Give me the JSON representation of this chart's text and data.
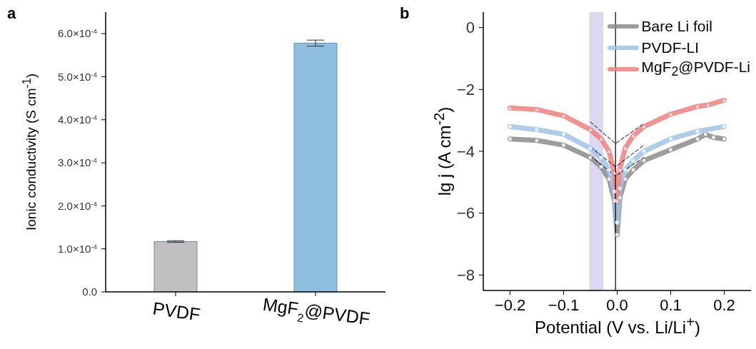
{
  "chart_data": [
    {
      "type": "bar",
      "title": "a",
      "ylabel": "Ionic conductivity (S cm$^{-1}$)",
      "categories": [
        "PVDF",
        "MgF$_{2}$@PVDF"
      ],
      "values": [
        0.000117,
        0.000578
      ],
      "errors": [
        2e-06,
        7e-06
      ],
      "colors": [
        "#c0c0c0",
        "#8fbfe0"
      ],
      "ylim": [
        0,
        0.00065
      ],
      "yticks": [
        {
          "value": 0,
          "label": "0.0"
        },
        {
          "value": 0.0001,
          "label": "1.0×10$^{-4}$"
        },
        {
          "value": 0.0002,
          "label": "2.0×10$^{-4}$"
        },
        {
          "value": 0.0003,
          "label": "3.0×10$^{-4}$"
        },
        {
          "value": 0.0004,
          "label": "4.0×10$^{-4}$"
        },
        {
          "value": 0.0005,
          "label": "5.0×10$^{-4}$"
        },
        {
          "value": 0.0006,
          "label": "6.0×10$^{-4}$"
        }
      ]
    },
    {
      "type": "line",
      "title": "b",
      "xlabel": "Potential (V vs. Li/Li$^{+}$)",
      "ylabel": "lg j (A cm$^{-2}$)",
      "legend": "top right",
      "xlim": [
        -0.25,
        0.25
      ],
      "ylim": [
        -8.5,
        0.5
      ],
      "xticks": [
        {
          "value": -0.2,
          "label": "−0.2"
        },
        {
          "value": -0.1,
          "label": "−0.1"
        },
        {
          "value": 0,
          "label": "0.0"
        },
        0.1,
        0.2
      ],
      "yticks": [
        {
          "value": -8,
          "label": "−8"
        },
        {
          "value": -6,
          "label": "−6"
        },
        {
          "value": -4,
          "label": "−4"
        },
        {
          "value": -2,
          "label": "−2"
        },
        0
      ],
      "series": [
        {
          "name": "Bare Li foil",
          "color": "#8c8c8c",
          "marker": "square",
          "x": [
            -0.2,
            -0.15,
            -0.1,
            -0.05,
            -0.03,
            -0.015,
            -0.005,
            0,
            0.005,
            0.015,
            0.03,
            0.05,
            0.1,
            0.15,
            0.165,
            0.18,
            0.2
          ],
          "values": [
            -3.6,
            -3.65,
            -3.8,
            -4.2,
            -4.5,
            -4.9,
            -5.6,
            -6.7,
            -5.5,
            -4.9,
            -4.6,
            -4.3,
            -3.95,
            -3.6,
            -3.45,
            -3.55,
            -3.6
          ]
        },
        {
          "name": "PVDF-LI",
          "color": "#9dc3e6",
          "marker": "circle",
          "x": [
            -0.2,
            -0.15,
            -0.1,
            -0.05,
            -0.03,
            -0.015,
            -0.005,
            0,
            0.005,
            0.015,
            0.03,
            0.05,
            0.1,
            0.15,
            0.2
          ],
          "values": [
            -3.2,
            -3.3,
            -3.45,
            -3.9,
            -4.2,
            -4.6,
            -5.3,
            -6.3,
            -5.2,
            -4.6,
            -4.3,
            -4.0,
            -3.6,
            -3.35,
            -3.2
          ]
        },
        {
          "name": "MgF$_{2}$@PVDF-Li",
          "color": "#f08080",
          "marker": "triangle",
          "x": [
            -0.2,
            -0.15,
            -0.1,
            -0.05,
            -0.03,
            -0.015,
            -0.005,
            0,
            0.005,
            0.015,
            0.03,
            0.05,
            0.1,
            0.15,
            0.17,
            0.2
          ],
          "values": [
            -2.6,
            -2.65,
            -2.85,
            -3.3,
            -3.6,
            -4.0,
            -4.7,
            -5.6,
            -4.6,
            -3.9,
            -3.5,
            -3.2,
            -2.8,
            -2.55,
            -2.5,
            -2.35
          ]
        },
        {
          "type": "line",
          "color": "#000000",
          "marker": "none",
          "line_style": "dashed",
          "x": [
            -0.05,
            -0.003,
            0.05
          ],
          "values": [
            -4.15,
            -4.8,
            -4.2
          ]
        },
        {
          "type": "line",
          "color": "#000000",
          "marker": "none",
          "line_style": "dashed",
          "x": [
            -0.05,
            -0.003,
            0.05
          ],
          "values": [
            -3.86,
            -4.5,
            -3.8
          ]
        },
        {
          "type": "line",
          "color": "#000000",
          "marker": "none",
          "line_style": "dashed",
          "x": [
            -0.05,
            -0.003,
            0.05
          ],
          "values": [
            -3.05,
            -3.75,
            -3.1
          ]
        }
      ],
      "ref_lines": [
        {
          "axis": "x",
          "value": -0.003,
          "color": "#000000"
        }
      ],
      "bands": [
        {
          "axis": "x",
          "from": -0.052,
          "to": -0.026,
          "color": "#dcd8f0"
        }
      ]
    }
  ]
}
